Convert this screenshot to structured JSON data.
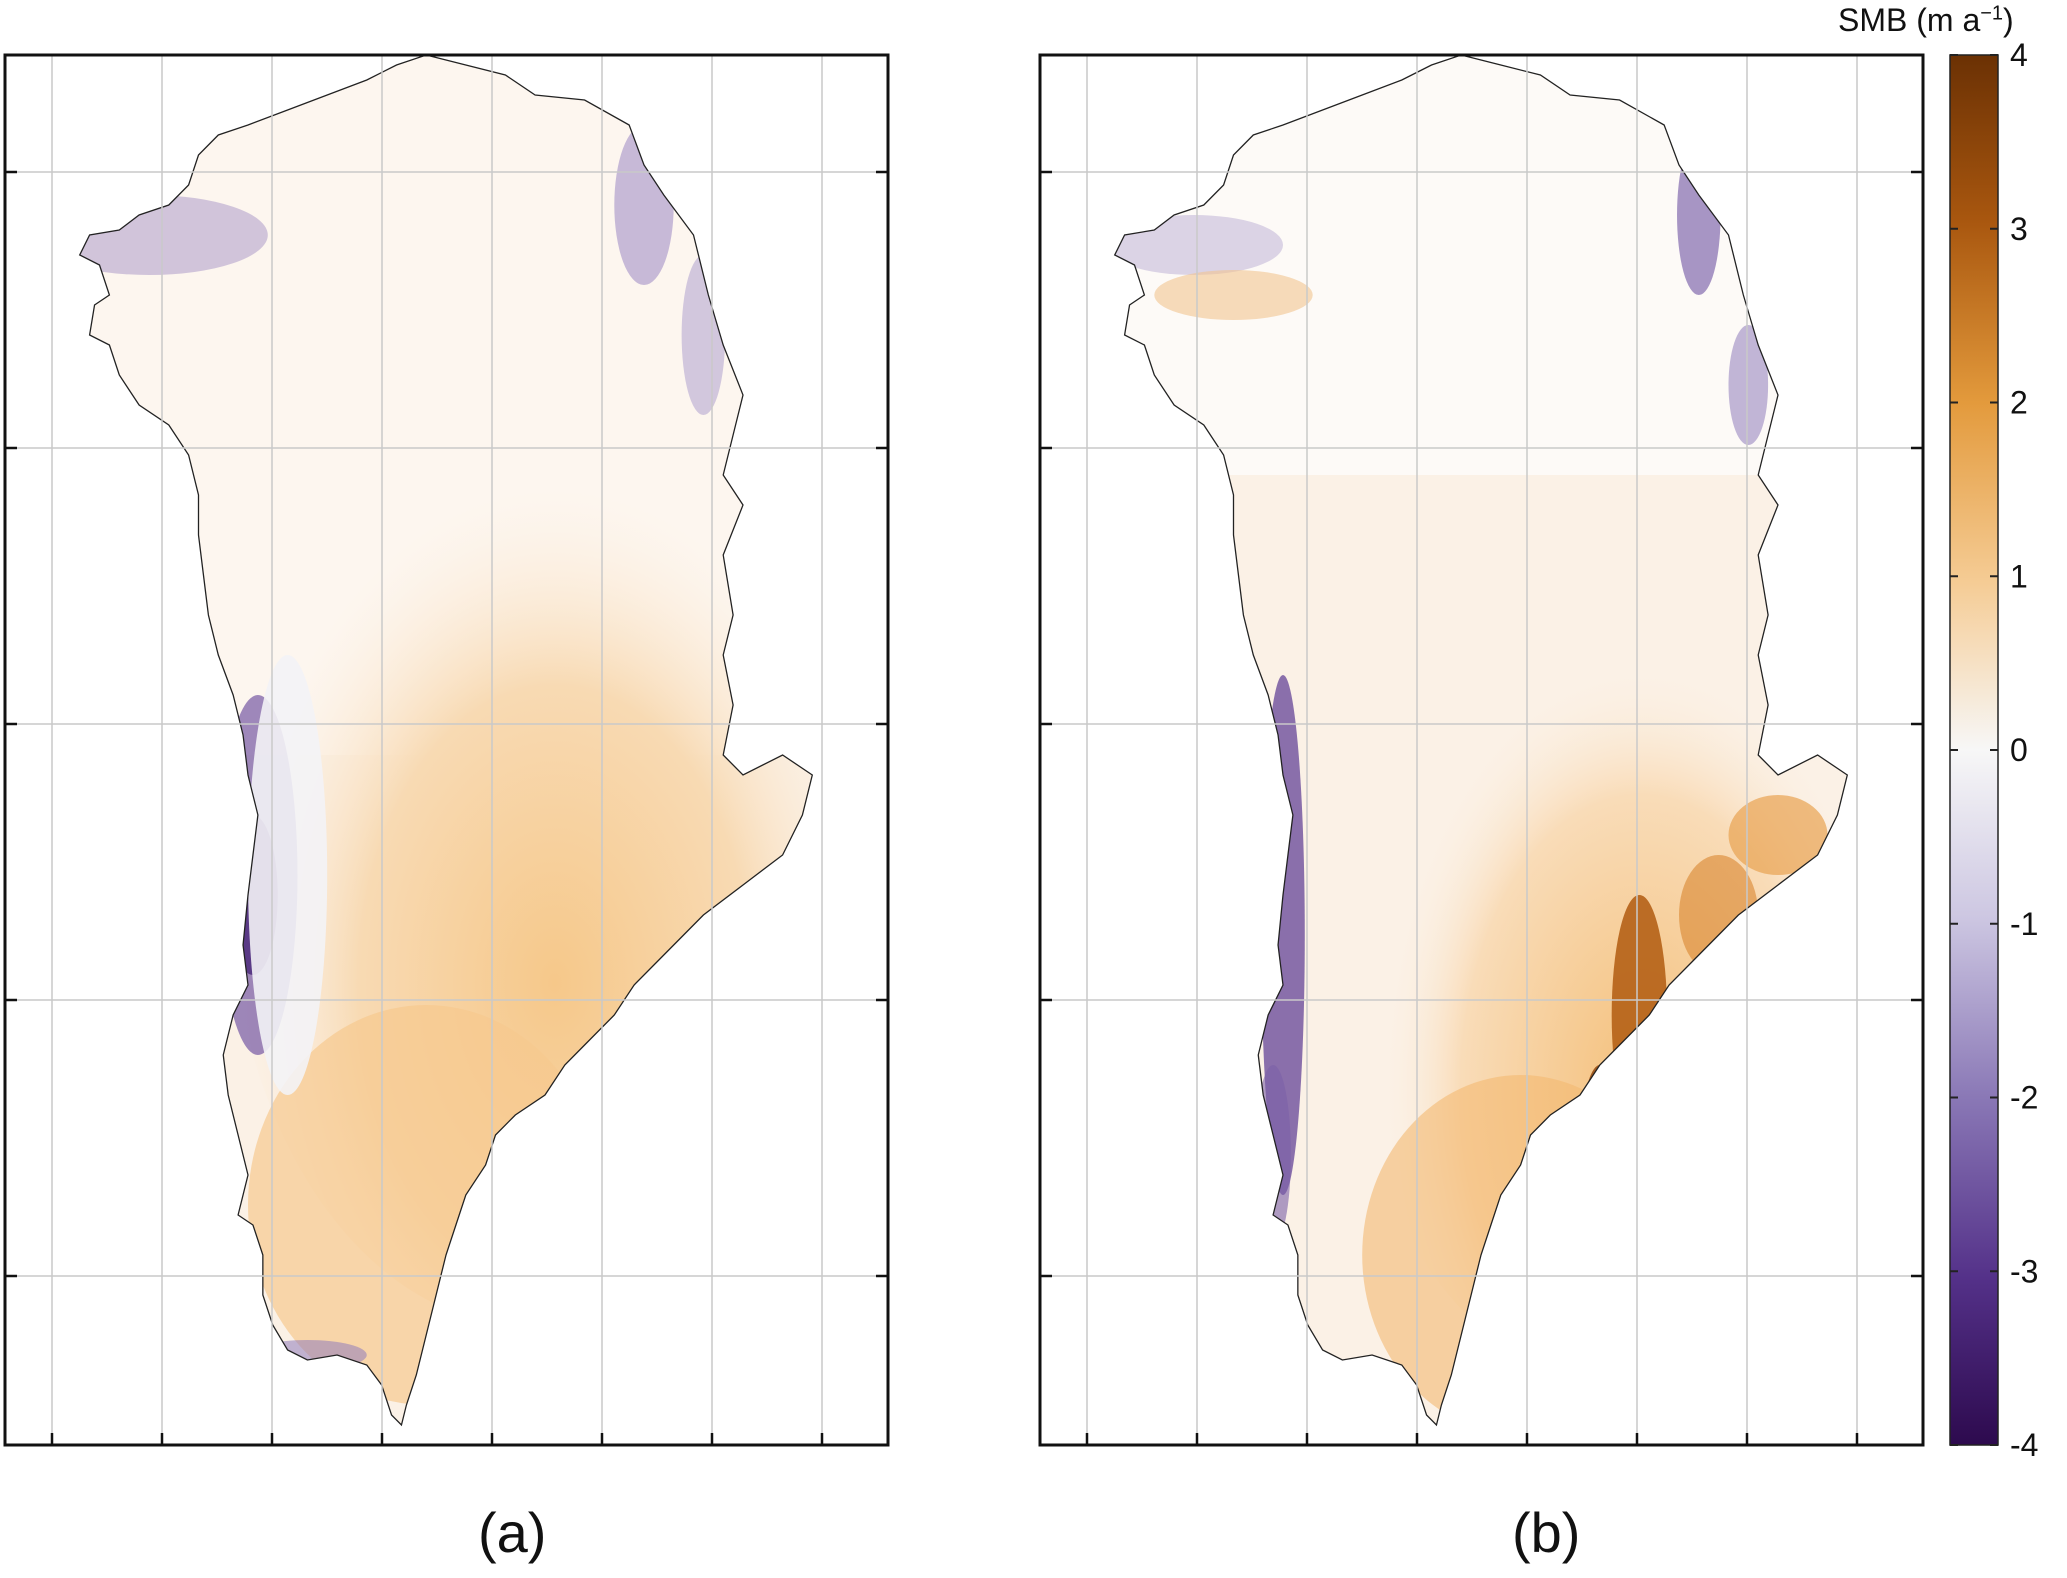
{
  "figure": {
    "panels": [
      {
        "id": "a",
        "label": "(a)"
      },
      {
        "id": "b",
        "label": "(b)"
      }
    ],
    "colorbar": {
      "title": "SMB (m a",
      "title_sup": "−1",
      "title_close": ")",
      "min": -4,
      "max": 4,
      "ticks": [
        "4",
        "3",
        "2",
        "1",
        "0",
        "-1",
        "-2",
        "-3",
        "-4"
      ],
      "colors": {
        "negative_max": "#3b0f5e",
        "zero": "#f7f7f7",
        "positive_max": "#7a3a08"
      }
    }
  }
}
